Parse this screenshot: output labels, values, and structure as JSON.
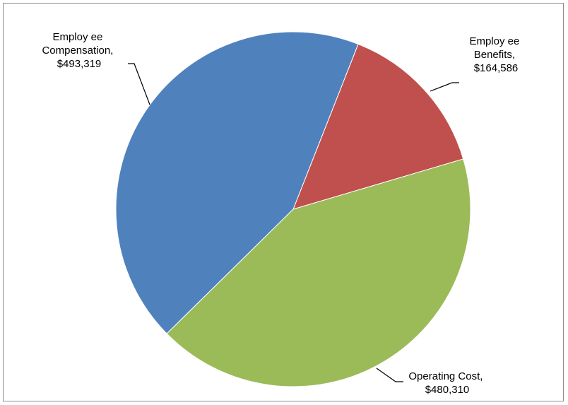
{
  "chart_data": {
    "type": "pie",
    "title": "",
    "slices": [
      {
        "label": "Employee Compensation",
        "value": 493319,
        "value_text": "$493,319",
        "label_lines": [
          "Employ ee",
          "Compensation,",
          "$493,319"
        ],
        "color": "#4F81BD"
      },
      {
        "label": "Employee Benefits",
        "value": 164586,
        "value_text": "$164,586",
        "label_lines": [
          "Employ ee",
          "Benefits,",
          "$164,586"
        ],
        "color": "#C0504D"
      },
      {
        "label": "Operating Cost",
        "value": 480310,
        "value_text": "$480,310",
        "label_lines": [
          "Operating Cost,",
          "$480,310"
        ],
        "color": "#9BBB59"
      }
    ],
    "legend": "none",
    "data_labels": "outside-with-leader-lines"
  }
}
